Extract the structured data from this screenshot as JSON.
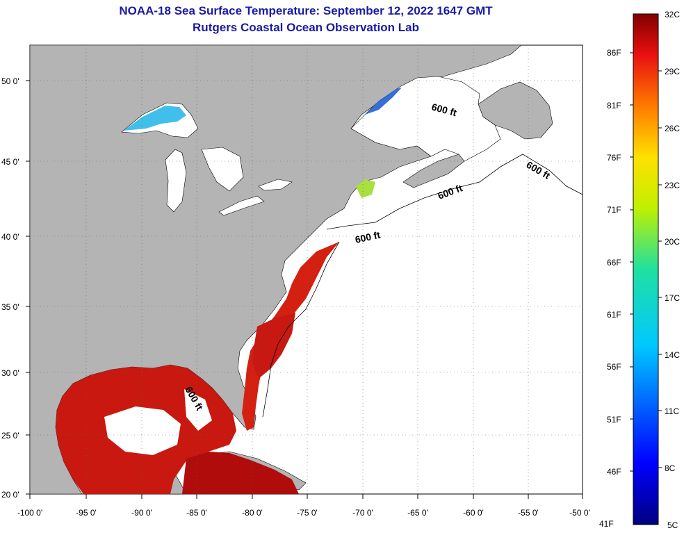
{
  "title": {
    "line1": "NOAA-18 Sea Surface Temperature:  September 12, 2022 1647 GMT",
    "line2": "Rutgers Coastal Ocean Observation Lab"
  },
  "map": {
    "lon_labels": [
      "-100 0'",
      "-95 0'",
      "-90 0'",
      "-85 0'",
      "-80 0'",
      "-75 0'",
      "-70 0'",
      "-65 0'",
      "-60 0'",
      "-55 0'",
      "-50 0'"
    ],
    "lat_labels": [
      "50 0'",
      "45 0'",
      "40 0'",
      "35 0'",
      "30 0'",
      "25 0'",
      "20 0'"
    ],
    "contour_labels": [
      "600 ft",
      "600 ft",
      "600 ft",
      "600 ft",
      "600 ft"
    ],
    "colors": {
      "land": "#b4b4b4",
      "ocean_nodata": "#ffffff",
      "warm_water": "#d62010",
      "hot_water": "#b00c0c"
    }
  },
  "colorbar": {
    "min_c": 5,
    "max_c": 32,
    "celsius_labels": [
      "32C",
      "29C",
      "26C",
      "23C",
      "20C",
      "17C",
      "14C",
      "11C",
      "8C",
      "5C"
    ],
    "fahrenheit_labels": [
      "86F",
      "81F",
      "76F",
      "71F",
      "66F",
      "61F",
      "56F",
      "51F",
      "46F",
      "41F"
    ]
  }
}
